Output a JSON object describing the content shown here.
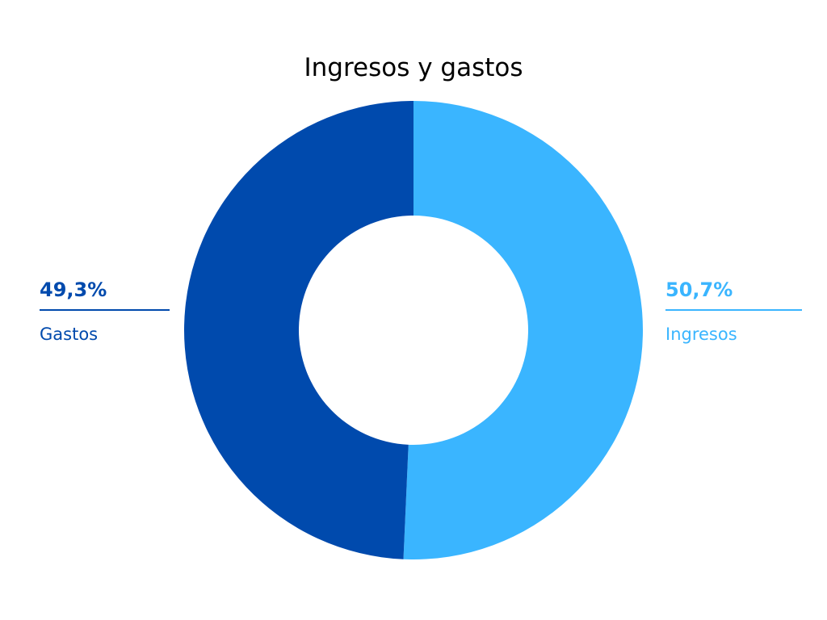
{
  "chart_data": {
    "type": "pie",
    "variant": "donut",
    "title": "Ingresos y gastos",
    "slices": [
      {
        "name": "Ingresos",
        "value": 50.7,
        "label": "50,7%",
        "color": "#3AB5FF"
      },
      {
        "name": "Gastos",
        "value": 49.3,
        "label": "49,3%",
        "color": "#004AAD"
      }
    ],
    "start": "12 o'clock",
    "direction": "clockwise",
    "label_placement": "outside, left and right with leader line"
  }
}
